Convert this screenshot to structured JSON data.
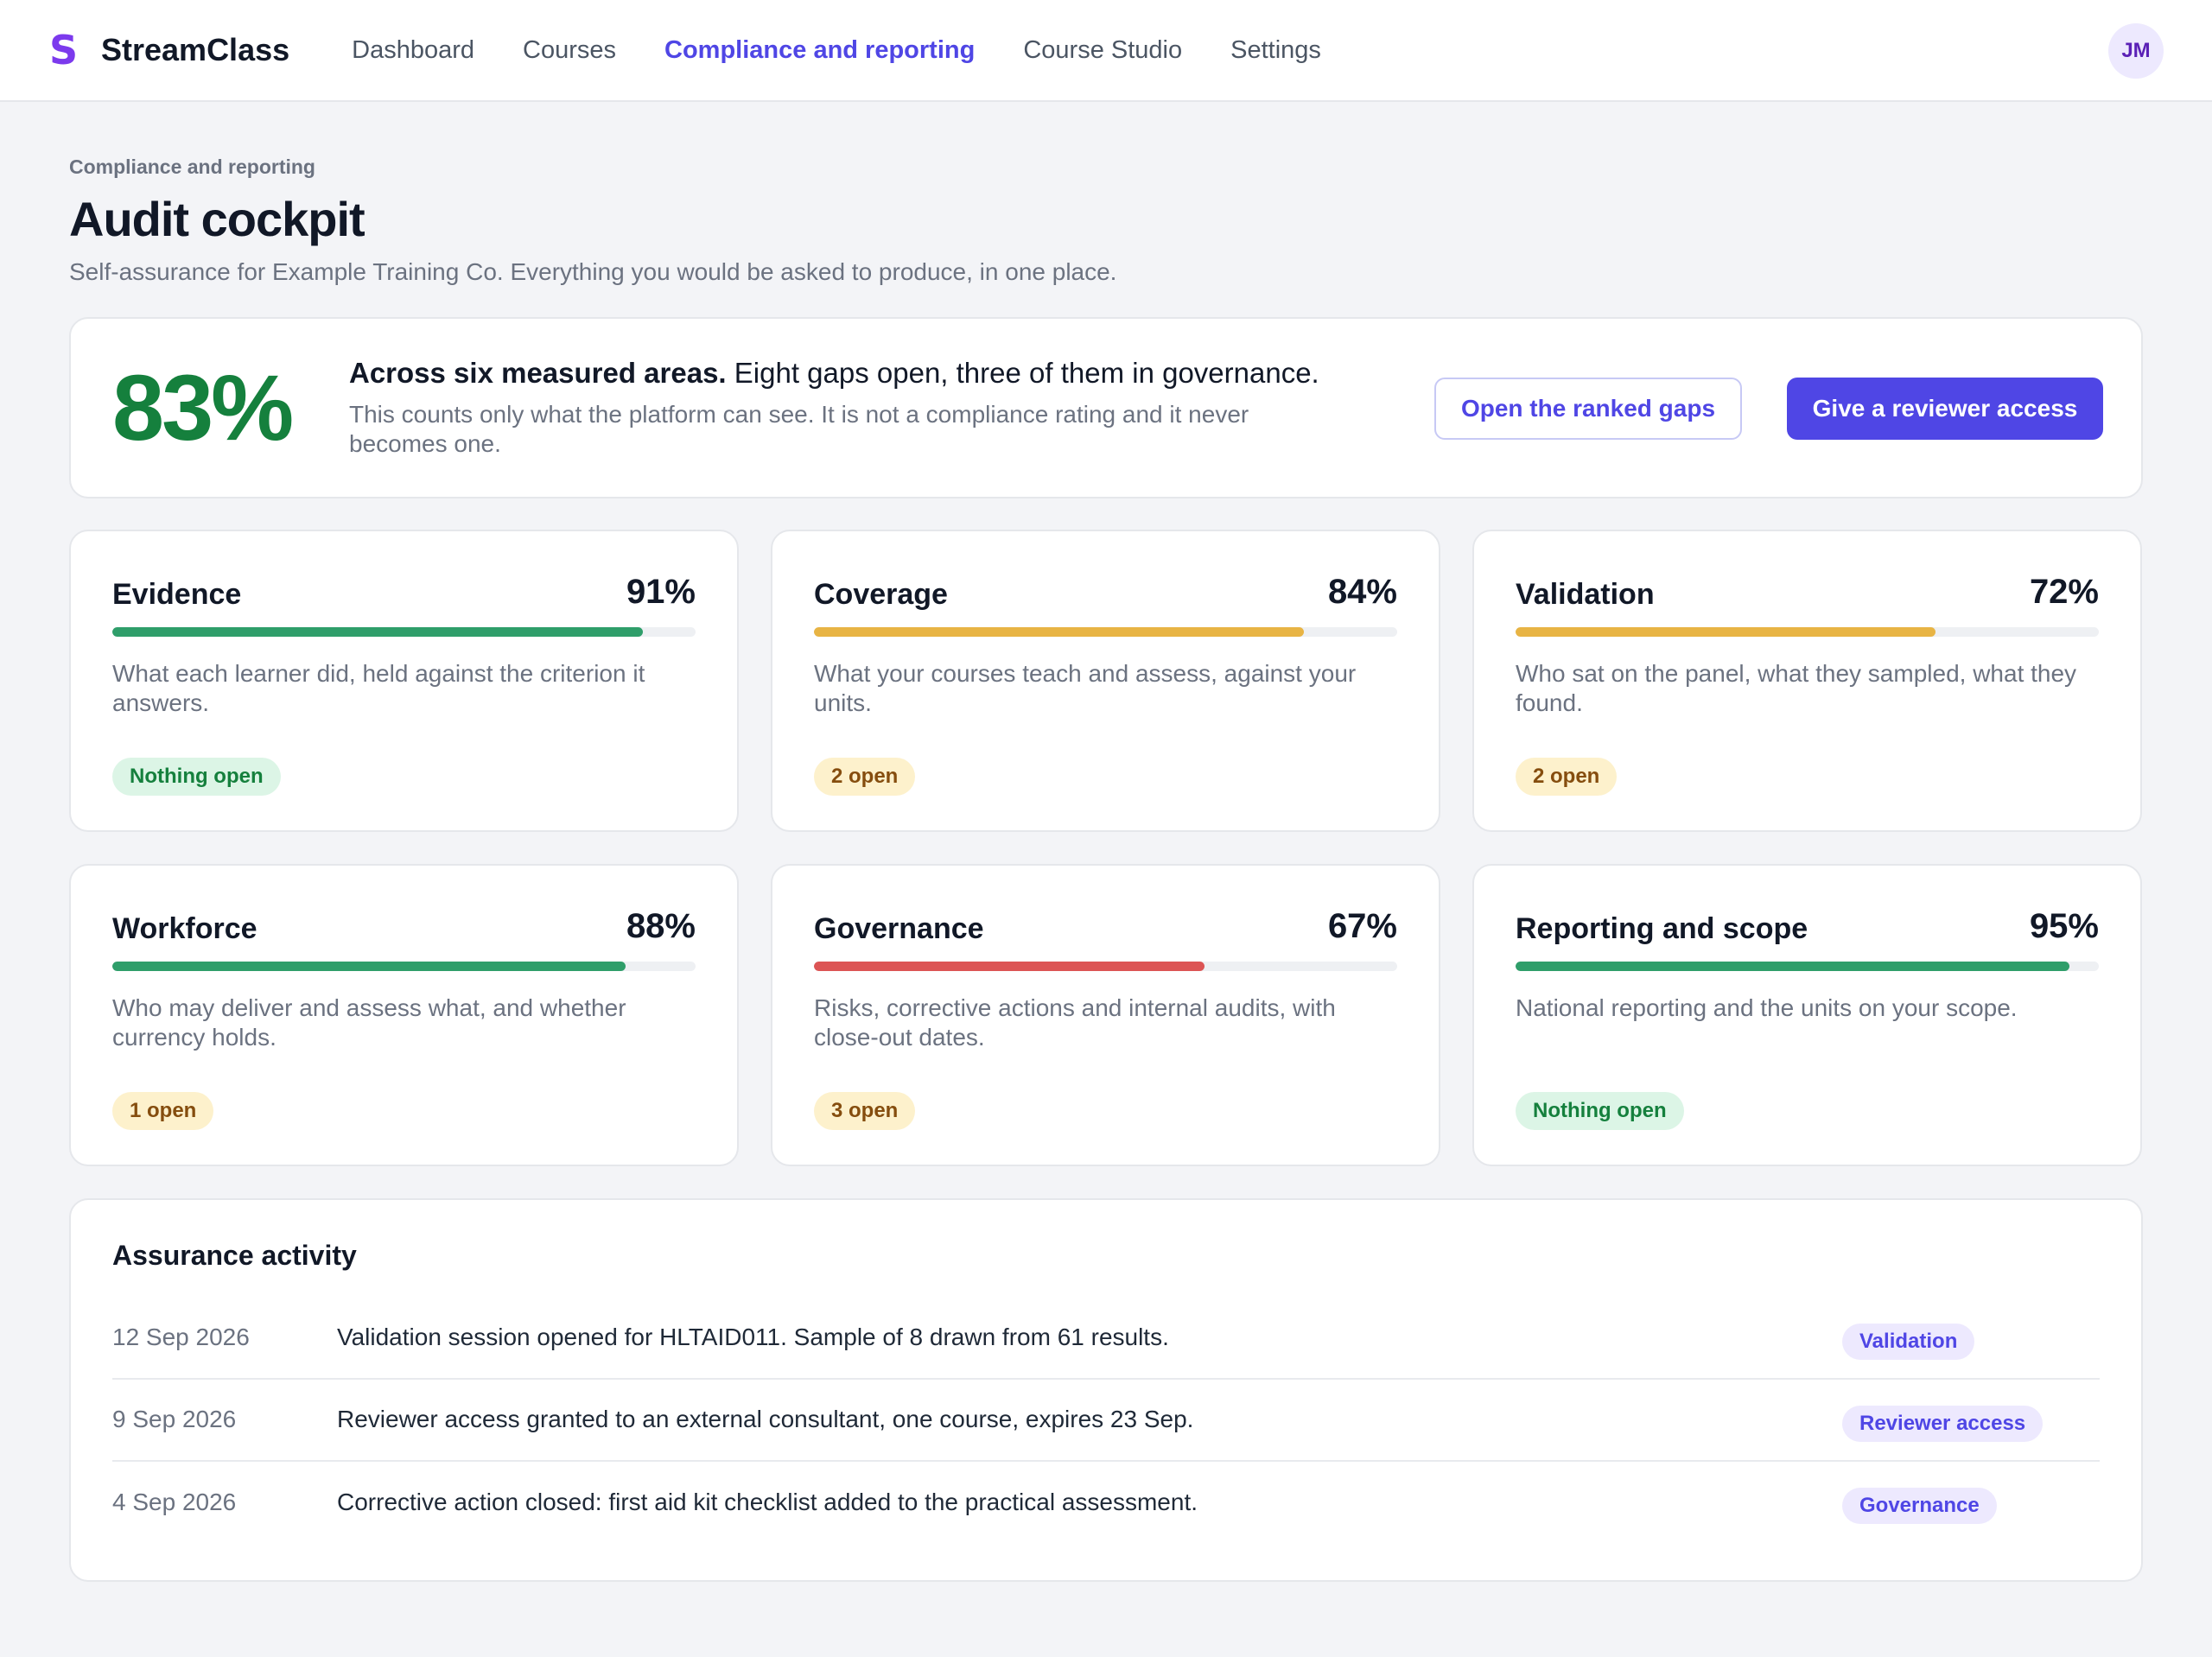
{
  "app": {
    "logo_glyph": "S",
    "name": "StreamClass"
  },
  "nav": [
    {
      "label": "Dashboard",
      "active": false
    },
    {
      "label": "Courses",
      "active": false
    },
    {
      "label": "Compliance and reporting",
      "active": true
    },
    {
      "label": "Course Studio",
      "active": false
    },
    {
      "label": "Settings",
      "active": false
    }
  ],
  "user": {
    "initials": "JM"
  },
  "header": {
    "breadcrumb": "Compliance and reporting",
    "title": "Audit cockpit",
    "subtitle": "Self-assurance for Example Training Co. Everything you would be asked to produce, in one place."
  },
  "summary": {
    "score": "83%",
    "headline_bold": "Across six measured areas.",
    "headline_rest": " Eight gaps open, three of them in governance.",
    "note": "This counts only what the platform can see. It is not a compliance rating and it never becomes one.",
    "secondary_button": "Open the ranked gaps",
    "primary_button": "Give a reviewer access"
  },
  "colors": {
    "accent": "#4f46e5",
    "good": "#2f9e6a",
    "warn": "#e8b444",
    "bad": "#dc5454",
    "score": "#15803d"
  },
  "areas": [
    {
      "name": "Evidence",
      "percent": "91%",
      "fill": 0.91,
      "status": "good",
      "description": "What each learner did, held against the criterion it answers.",
      "badge": "Nothing open",
      "badge_type": "ok"
    },
    {
      "name": "Coverage",
      "percent": "84%",
      "fill": 0.84,
      "status": "warn",
      "description": "What your courses teach and assess, against your units.",
      "badge": "2 open",
      "badge_type": "warn"
    },
    {
      "name": "Validation",
      "percent": "72%",
      "fill": 0.72,
      "status": "warn",
      "description": "Who sat on the panel, what they sampled, what they found.",
      "badge": "2 open",
      "badge_type": "warn"
    },
    {
      "name": "Workforce",
      "percent": "88%",
      "fill": 0.88,
      "status": "good",
      "description": "Who may deliver and assess what, and whether currency holds.",
      "badge": "1 open",
      "badge_type": "warn"
    },
    {
      "name": "Governance",
      "percent": "67%",
      "fill": 0.67,
      "status": "bad",
      "description": "Risks, corrective actions and internal audits, with close-out dates.",
      "badge": "3 open",
      "badge_type": "warn"
    },
    {
      "name": "Reporting and scope",
      "percent": "95%",
      "fill": 0.95,
      "status": "good",
      "description": "National reporting and the units on your scope.",
      "badge": "Nothing open",
      "badge_type": "ok"
    }
  ],
  "activity": {
    "title": "Assurance activity",
    "items": [
      {
        "date": "12 Sep 2026",
        "text": "Validation session opened for HLTAID011. Sample of 8 drawn from 61 results.",
        "tag": "Validation"
      },
      {
        "date": "9 Sep 2026",
        "text": "Reviewer access granted to an external consultant, one course, expires 23 Sep.",
        "tag": "Reviewer access"
      },
      {
        "date": "4 Sep 2026",
        "text": "Corrective action closed: first aid kit checklist added to the practical assessment.",
        "tag": "Governance"
      }
    ]
  }
}
